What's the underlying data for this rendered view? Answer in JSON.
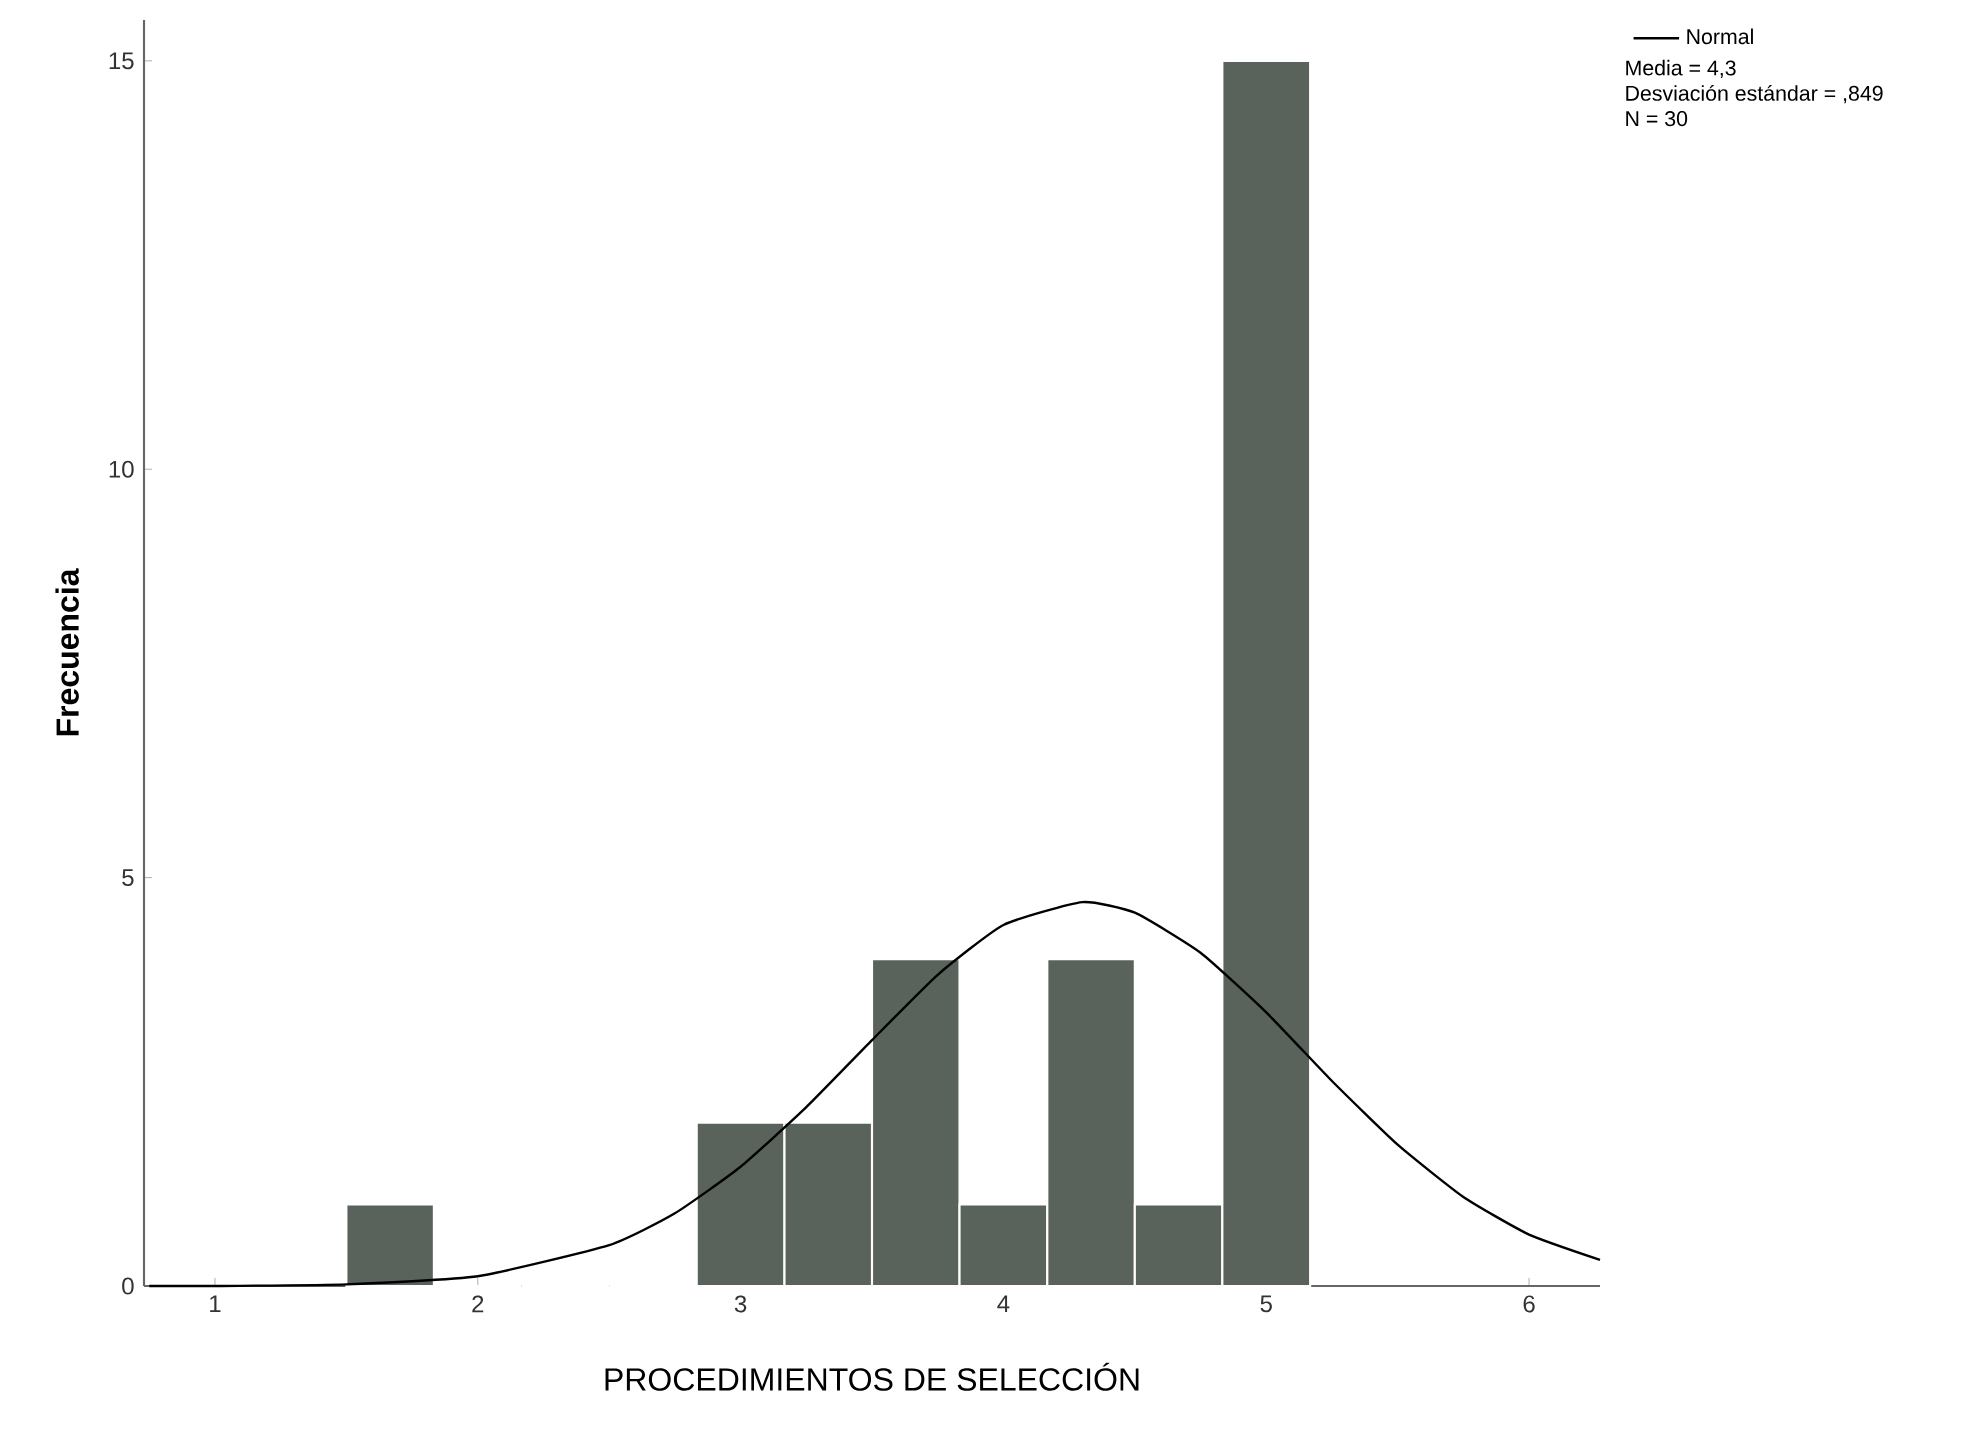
{
  "chart_data": {
    "type": "histogram",
    "xlabel": "PROCEDIMIENTOS DE SELECCIÓN",
    "ylabel": "Frecuencia",
    "series": [
      {
        "color": "#5a625c",
        "bins": [
          1.5,
          1.833,
          2.167,
          2.5,
          2.833,
          3.167,
          3.5,
          3.833,
          4.167,
          4.5,
          4.833,
          5.167
        ],
        "values": [
          1,
          0,
          0,
          0,
          2,
          2,
          4,
          1,
          4,
          1,
          15
        ]
      },
      {
        "type": "line",
        "name": "Normal",
        "color": "#000000",
        "x": [
          0.75,
          1.0,
          1.5,
          2.0,
          2.5,
          2.75,
          3.0,
          3.25,
          3.5,
          3.75,
          4.0,
          4.3,
          4.5,
          4.75,
          5.0,
          5.25,
          5.5,
          5.75,
          6.0,
          6.27
        ],
        "values": [
          0.0,
          0.0,
          0.02,
          0.12,
          0.5,
          0.89,
          1.46,
          2.19,
          3.01,
          3.81,
          4.42,
          4.7,
          4.57,
          4.08,
          3.35,
          2.51,
          1.73,
          1.09,
          0.63,
          0.32
        ]
      }
    ],
    "annotations": [
      "Media = 4,3",
      "Desviación estándar = ,849",
      "N = 30"
    ],
    "xlim": [
      0.73,
      6.27
    ],
    "ylim": [
      0,
      15.5
    ],
    "xticks": [
      1,
      2,
      3,
      4,
      5,
      6
    ],
    "yticks": [
      0,
      5,
      10,
      15
    ],
    "legend": "top right",
    "grid": false
  }
}
